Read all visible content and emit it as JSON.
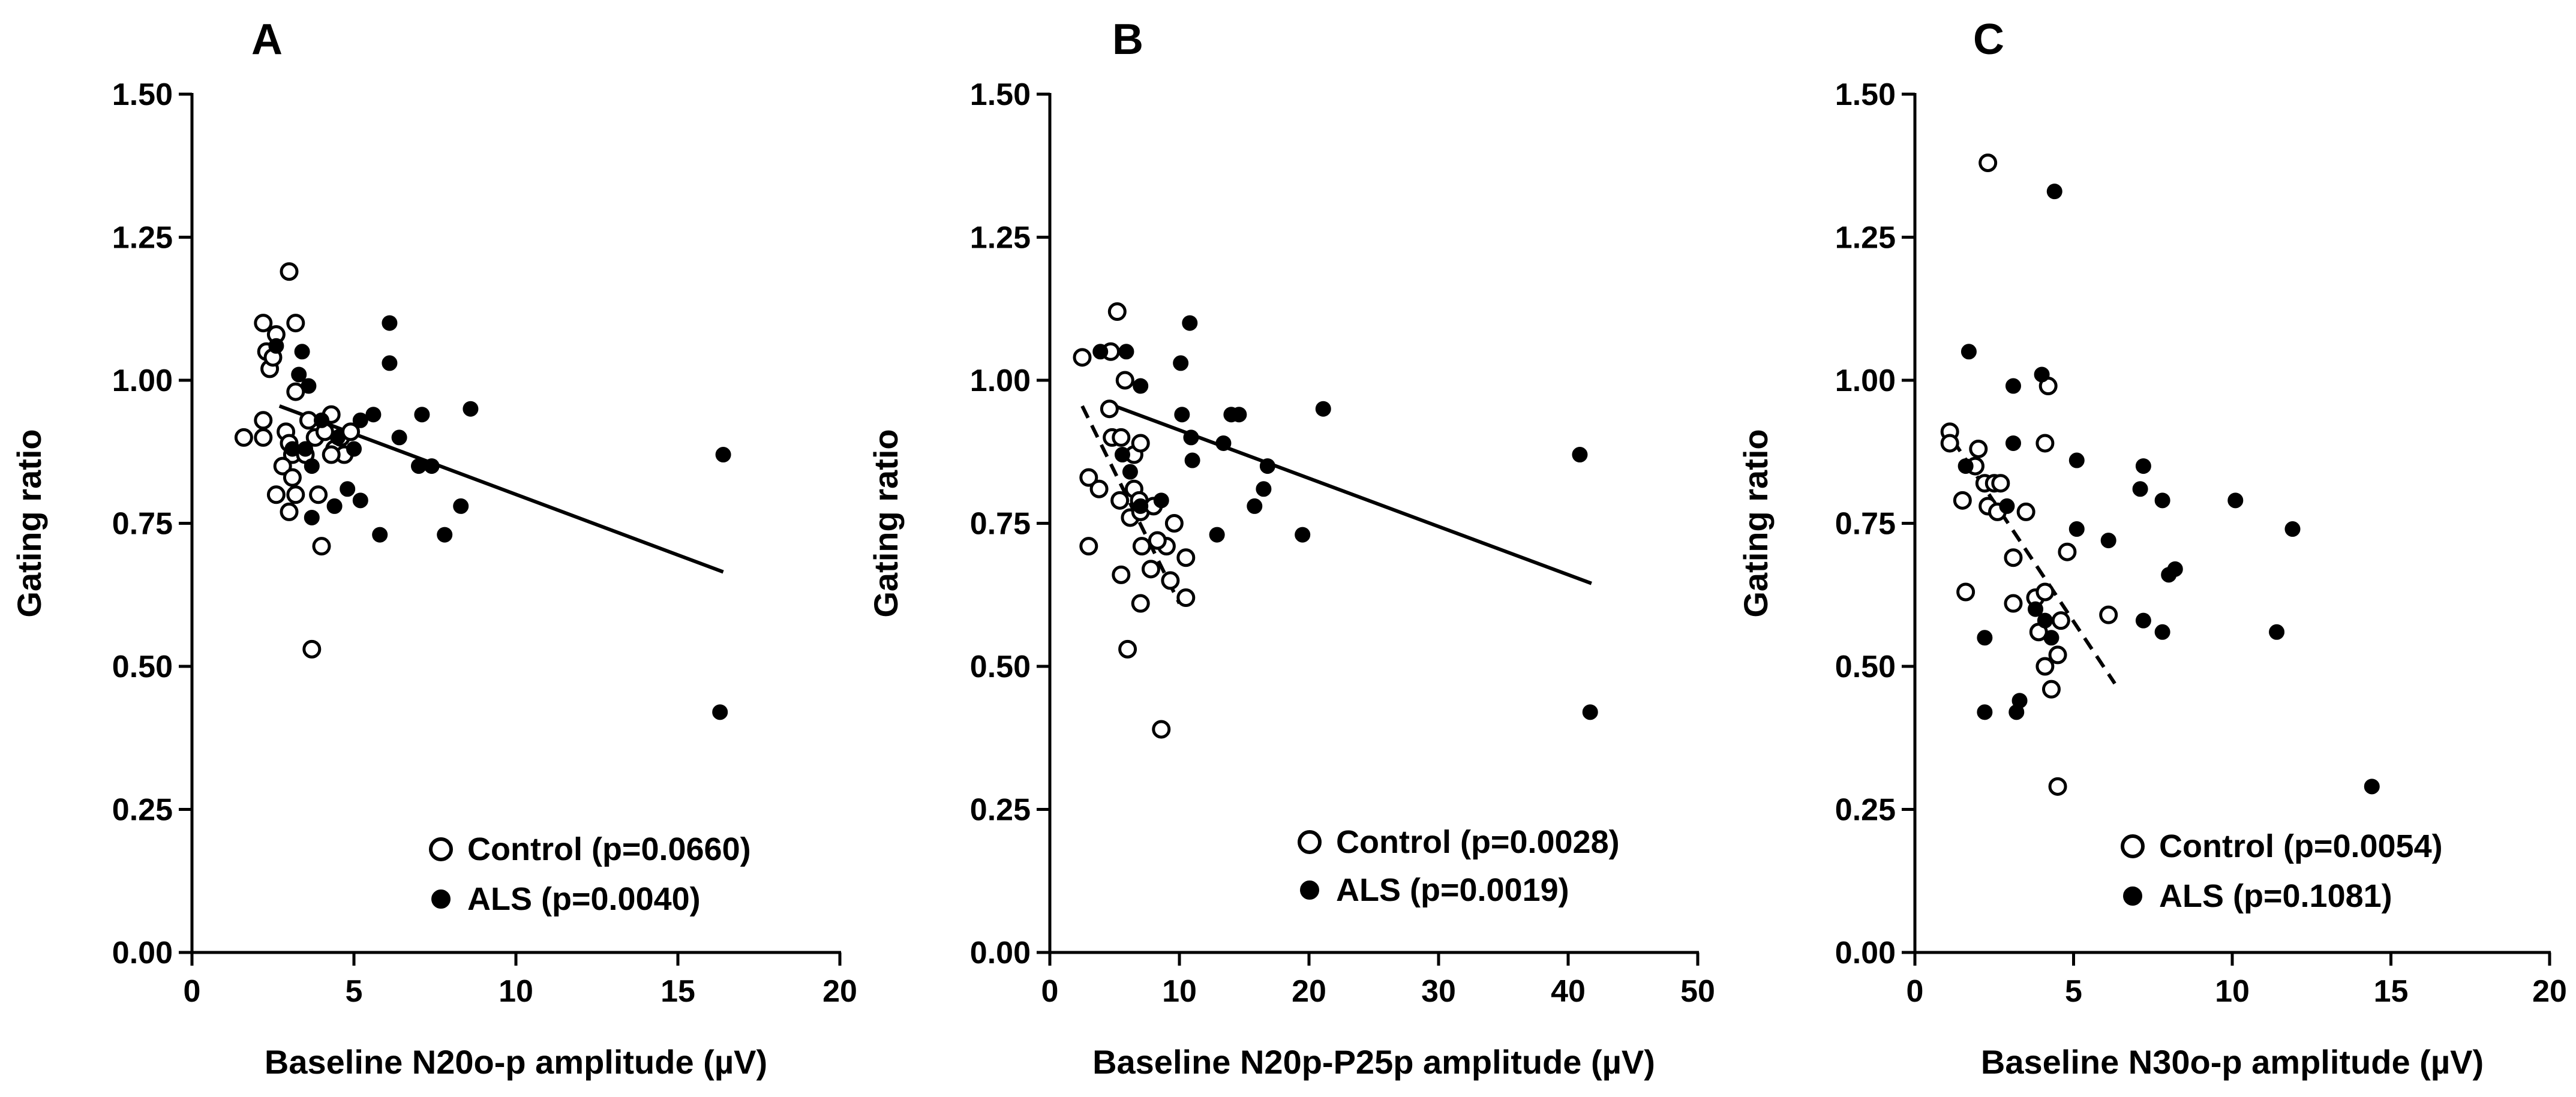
{
  "chart_data": [
    {
      "type": "scatter",
      "panel": "A",
      "xlabel": "Baseline N20o-p amplitude (µV)",
      "ylabel": "Gating ratio",
      "xlim": [
        0,
        20
      ],
      "ylim": [
        0,
        1.5
      ],
      "xticks": [
        0,
        5,
        10,
        15,
        20
      ],
      "yticks": [
        0.0,
        0.25,
        0.5,
        0.75,
        1.0,
        1.25,
        1.5
      ],
      "legend": "bottom-right",
      "series": [
        {
          "name": "Control",
          "legend_label": "Control (p=0.0660)",
          "marker": "open-circle",
          "points": [
            [
              3.0,
              1.19
            ],
            [
              2.2,
              1.1
            ],
            [
              3.2,
              1.1
            ],
            [
              2.6,
              1.08
            ],
            [
              2.3,
              1.05
            ],
            [
              2.4,
              1.02
            ],
            [
              2.5,
              1.04
            ],
            [
              3.2,
              0.98
            ],
            [
              2.2,
              0.93
            ],
            [
              3.6,
              0.93
            ],
            [
              4.3,
              0.94
            ],
            [
              1.6,
              0.9
            ],
            [
              2.2,
              0.9
            ],
            [
              2.9,
              0.91
            ],
            [
              3.0,
              0.89
            ],
            [
              3.1,
              0.87
            ],
            [
              3.5,
              0.87
            ],
            [
              3.8,
              0.9
            ],
            [
              4.1,
              0.91
            ],
            [
              4.4,
              0.88
            ],
            [
              4.6,
              0.9
            ],
            [
              4.9,
              0.91
            ],
            [
              4.7,
              0.87
            ],
            [
              4.3,
              0.87
            ],
            [
              2.8,
              0.85
            ],
            [
              3.1,
              0.83
            ],
            [
              2.6,
              0.8
            ],
            [
              3.2,
              0.8
            ],
            [
              3.9,
              0.8
            ],
            [
              3.0,
              0.77
            ],
            [
              4.0,
              0.71
            ],
            [
              3.7,
              0.53
            ]
          ]
        },
        {
          "name": "ALS",
          "legend_label": "ALS (p=0.0040)",
          "marker": "filled-circle",
          "points": [
            [
              6.1,
              1.1
            ],
            [
              2.6,
              1.06
            ],
            [
              3.4,
              1.05
            ],
            [
              3.3,
              1.01
            ],
            [
              6.1,
              1.03
            ],
            [
              3.6,
              0.99
            ],
            [
              3.1,
              0.88
            ],
            [
              3.5,
              0.88
            ],
            [
              3.7,
              0.85
            ],
            [
              4.0,
              0.93
            ],
            [
              4.5,
              0.9
            ],
            [
              5.0,
              0.88
            ],
            [
              5.2,
              0.93
            ],
            [
              5.6,
              0.94
            ],
            [
              6.4,
              0.9
            ],
            [
              7.1,
              0.94
            ],
            [
              8.6,
              0.95
            ],
            [
              7.0,
              0.85
            ],
            [
              7.4,
              0.85
            ],
            [
              4.4,
              0.78
            ],
            [
              5.2,
              0.79
            ],
            [
              4.8,
              0.81
            ],
            [
              3.7,
              0.76
            ],
            [
              5.8,
              0.73
            ],
            [
              7.8,
              0.73
            ],
            [
              8.3,
              0.78
            ],
            [
              16.4,
              0.87
            ],
            [
              16.3,
              0.42
            ]
          ]
        }
      ],
      "fit_lines": [
        {
          "series": "ALS",
          "style": "solid",
          "from": [
            2.7,
            0.955
          ],
          "to": [
            16.4,
            0.665
          ]
        }
      ]
    },
    {
      "type": "scatter",
      "panel": "B",
      "xlabel": "Baseline N20p-P25p amplitude (µV)",
      "ylabel": "Gating ratio",
      "xlim": [
        0,
        50
      ],
      "ylim": [
        0,
        1.5
      ],
      "xticks": [
        0,
        10,
        20,
        30,
        40,
        50
      ],
      "yticks": [
        0.0,
        0.25,
        0.5,
        0.75,
        1.0,
        1.25,
        1.5
      ],
      "legend": "bottom-right",
      "series": [
        {
          "name": "Control",
          "legend_label": "Control (p=0.0028)",
          "marker": "open-circle",
          "points": [
            [
              5.2,
              1.12
            ],
            [
              2.5,
              1.04
            ],
            [
              4.7,
              1.05
            ],
            [
              5.8,
              1.0
            ],
            [
              4.6,
              0.95
            ],
            [
              4.8,
              0.9
            ],
            [
              5.5,
              0.9
            ],
            [
              6.5,
              0.87
            ],
            [
              7.0,
              0.89
            ],
            [
              3.0,
              0.83
            ],
            [
              3.8,
              0.81
            ],
            [
              5.4,
              0.79
            ],
            [
              6.2,
              0.76
            ],
            [
              6.5,
              0.81
            ],
            [
              6.9,
              0.79
            ],
            [
              7.0,
              0.77
            ],
            [
              8.0,
              0.78
            ],
            [
              9.0,
              0.71
            ],
            [
              9.6,
              0.75
            ],
            [
              10.5,
              0.69
            ],
            [
              7.1,
              0.71
            ],
            [
              8.3,
              0.72
            ],
            [
              7.8,
              0.67
            ],
            [
              9.3,
              0.65
            ],
            [
              3.0,
              0.71
            ],
            [
              5.5,
              0.66
            ],
            [
              7.0,
              0.61
            ],
            [
              10.5,
              0.62
            ],
            [
              6.0,
              0.53
            ],
            [
              8.6,
              0.39
            ]
          ]
        },
        {
          "name": "ALS",
          "legend_label": "ALS (p=0.0019)",
          "marker": "filled-circle",
          "points": [
            [
              10.8,
              1.1
            ],
            [
              3.9,
              1.05
            ],
            [
              5.9,
              1.05
            ],
            [
              10.1,
              1.03
            ],
            [
              7.0,
              0.99
            ],
            [
              10.2,
              0.94
            ],
            [
              14.0,
              0.94
            ],
            [
              14.6,
              0.94
            ],
            [
              21.1,
              0.95
            ],
            [
              10.9,
              0.9
            ],
            [
              11.0,
              0.86
            ],
            [
              13.4,
              0.89
            ],
            [
              16.8,
              0.85
            ],
            [
              16.5,
              0.81
            ],
            [
              15.8,
              0.78
            ],
            [
              5.6,
              0.87
            ],
            [
              6.2,
              0.84
            ],
            [
              8.6,
              0.79
            ],
            [
              7.0,
              0.78
            ],
            [
              12.9,
              0.73
            ],
            [
              19.5,
              0.73
            ],
            [
              40.9,
              0.87
            ],
            [
              41.7,
              0.42
            ]
          ]
        }
      ],
      "fit_lines": [
        {
          "series": "ALS",
          "style": "solid",
          "from": [
            5.0,
            0.955
          ],
          "to": [
            41.8,
            0.645
          ]
        },
        {
          "series": "Control",
          "style": "dashed",
          "from": [
            2.5,
            0.955
          ],
          "to": [
            10.0,
            0.61
          ]
        }
      ]
    },
    {
      "type": "scatter",
      "panel": "C",
      "xlabel": "Baseline N30o-p amplitude (µV)",
      "ylabel": "Gating ratio",
      "xlim": [
        0,
        20
      ],
      "ylim": [
        0,
        1.5
      ],
      "xticks": [
        0,
        5,
        10,
        15,
        20
      ],
      "yticks": [
        0.0,
        0.25,
        0.5,
        0.75,
        1.0,
        1.25,
        1.5
      ],
      "legend": "bottom-right",
      "series": [
        {
          "name": "Control",
          "legend_label": "Control (p=0.0054)",
          "marker": "open-circle",
          "points": [
            [
              2.3,
              1.38
            ],
            [
              4.2,
              0.99
            ],
            [
              1.1,
              0.91
            ],
            [
              1.1,
              0.89
            ],
            [
              2.0,
              0.88
            ],
            [
              4.1,
              0.89
            ],
            [
              1.9,
              0.85
            ],
            [
              2.2,
              0.82
            ],
            [
              2.5,
              0.82
            ],
            [
              2.7,
              0.82
            ],
            [
              1.5,
              0.79
            ],
            [
              2.3,
              0.78
            ],
            [
              2.6,
              0.77
            ],
            [
              3.5,
              0.77
            ],
            [
              3.1,
              0.69
            ],
            [
              4.8,
              0.7
            ],
            [
              1.6,
              0.63
            ],
            [
              3.1,
              0.61
            ],
            [
              3.8,
              0.62
            ],
            [
              4.1,
              0.63
            ],
            [
              6.1,
              0.59
            ],
            [
              3.9,
              0.56
            ],
            [
              4.6,
              0.58
            ],
            [
              4.5,
              0.52
            ],
            [
              4.1,
              0.5
            ],
            [
              4.3,
              0.46
            ],
            [
              4.5,
              0.29
            ]
          ]
        },
        {
          "name": "ALS",
          "legend_label": "ALS (p=0.1081)",
          "marker": "filled-circle",
          "points": [
            [
              4.4,
              1.33
            ],
            [
              1.7,
              1.05
            ],
            [
              4.0,
              1.01
            ],
            [
              3.1,
              0.99
            ],
            [
              1.6,
              0.85
            ],
            [
              3.1,
              0.89
            ],
            [
              2.9,
              0.78
            ],
            [
              5.1,
              0.86
            ],
            [
              7.2,
              0.85
            ],
            [
              7.1,
              0.81
            ],
            [
              7.8,
              0.79
            ],
            [
              10.1,
              0.79
            ],
            [
              11.9,
              0.74
            ],
            [
              5.1,
              0.74
            ],
            [
              6.1,
              0.72
            ],
            [
              8.2,
              0.67
            ],
            [
              8.0,
              0.66
            ],
            [
              3.8,
              0.6
            ],
            [
              2.2,
              0.55
            ],
            [
              4.1,
              0.58
            ],
            [
              4.3,
              0.55
            ],
            [
              7.2,
              0.58
            ],
            [
              7.8,
              0.56
            ],
            [
              11.4,
              0.56
            ],
            [
              3.3,
              0.44
            ],
            [
              3.2,
              0.42
            ],
            [
              2.2,
              0.42
            ],
            [
              14.4,
              0.29
            ]
          ]
        }
      ],
      "fit_lines": [
        {
          "series": "Control",
          "style": "dashed",
          "from": [
            1.2,
            0.895
          ],
          "to": [
            6.3,
            0.47
          ]
        }
      ]
    }
  ]
}
